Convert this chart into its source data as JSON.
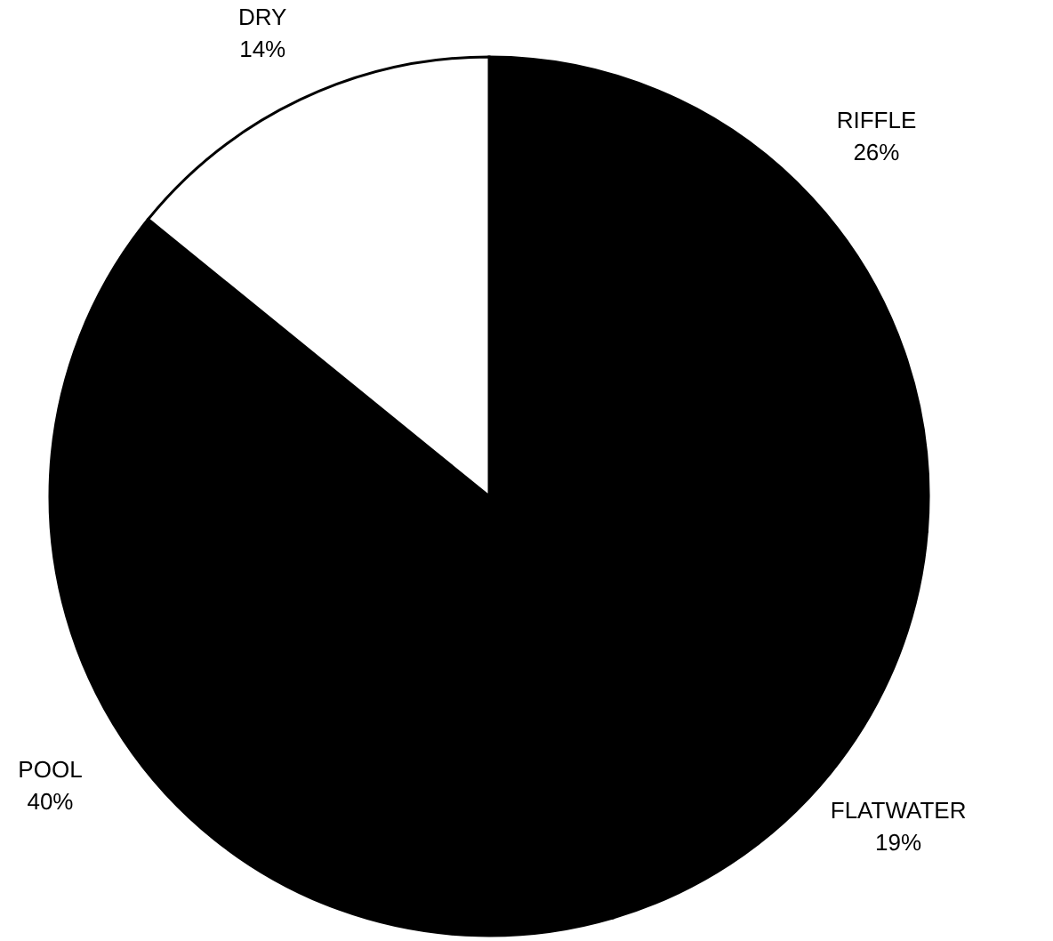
{
  "chart_data": {
    "type": "pie",
    "categories": [
      "RIFFLE",
      "FLATWATER",
      "POOL",
      "DRY"
    ],
    "values": [
      26,
      19,
      40,
      14
    ],
    "value_labels": [
      "26%",
      "19%",
      "40%",
      "14%"
    ],
    "colors": [
      "#000000",
      "#000000",
      "#000000",
      "#ffffff"
    ]
  }
}
